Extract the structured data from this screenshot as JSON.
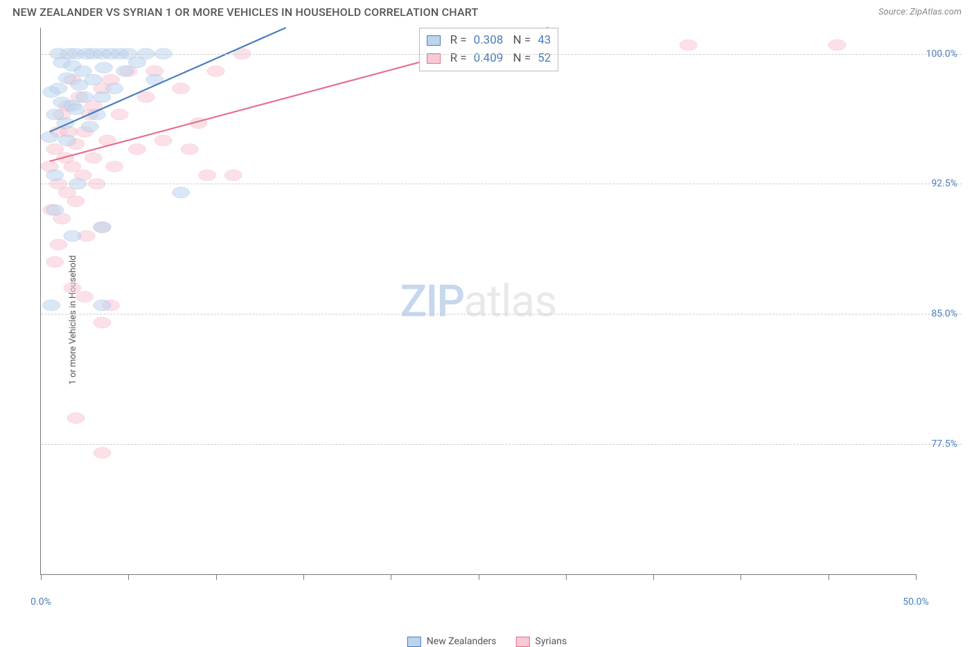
{
  "header": {
    "title": "NEW ZEALANDER VS SYRIAN 1 OR MORE VEHICLES IN HOUSEHOLD CORRELATION CHART",
    "source_prefix": "Source: ",
    "source_name": "ZipAtlas.com"
  },
  "watermark": {
    "part1": "ZIP",
    "part2": "atlas"
  },
  "chart": {
    "type": "scatter",
    "background_color": "#ffffff",
    "grid_color": "#cccccc",
    "axis_color": "#777777",
    "label_color": "#555555",
    "value_color": "#4a7ebb",
    "yaxis_label": "1 or more Vehicles in Household",
    "xlim": [
      0,
      50
    ],
    "ylim": [
      70,
      101.5
    ],
    "xticks": [
      0,
      5,
      10,
      15,
      20,
      25,
      30,
      35,
      40,
      45,
      50
    ],
    "xticks_labeled": {
      "0": "0.0%",
      "50": "50.0%"
    },
    "yticks": [
      77.5,
      85.0,
      92.5,
      100.0
    ],
    "ytick_labels": [
      "77.5%",
      "85.0%",
      "92.5%",
      "100.0%"
    ],
    "marker_radius": 8,
    "marker_opacity": 0.55,
    "marker_stroke_width": 1.2,
    "line_width": 2.2,
    "stats_box": {
      "left_pct": 43.2,
      "top_pct": 0
    },
    "series": {
      "nz": {
        "label": "New Zealanders",
        "fill": "#bcd4ee",
        "stroke": "#4a7ebb",
        "R": "0.308",
        "N": "43",
        "regression": {
          "x1": 0.5,
          "y1": 95.5,
          "x2": 14.0,
          "y2": 101.5
        },
        "points": [
          [
            0.5,
            95.2
          ],
          [
            0.6,
            97.8
          ],
          [
            0.8,
            93.0
          ],
          [
            0.8,
            96.5
          ],
          [
            1.0,
            98.0
          ],
          [
            1.0,
            100.0
          ],
          [
            1.2,
            99.5
          ],
          [
            1.2,
            97.2
          ],
          [
            1.4,
            96.0
          ],
          [
            1.5,
            98.6
          ],
          [
            1.5,
            95.0
          ],
          [
            1.6,
            100.0
          ],
          [
            1.8,
            97.0
          ],
          [
            1.8,
            99.3
          ],
          [
            2.0,
            96.8
          ],
          [
            2.0,
            100.0
          ],
          [
            2.1,
            92.5
          ],
          [
            2.2,
            98.2
          ],
          [
            2.4,
            99.0
          ],
          [
            2.5,
            97.5
          ],
          [
            2.6,
            100.0
          ],
          [
            2.8,
            95.8
          ],
          [
            3.0,
            98.5
          ],
          [
            3.0,
            100.0
          ],
          [
            3.2,
            96.5
          ],
          [
            3.5,
            100.0
          ],
          [
            3.5,
            97.5
          ],
          [
            3.6,
            99.2
          ],
          [
            4.0,
            100.0
          ],
          [
            4.2,
            98.0
          ],
          [
            4.5,
            100.0
          ],
          [
            4.8,
            99.0
          ],
          [
            5.0,
            100.0
          ],
          [
            5.5,
            99.5
          ],
          [
            6.0,
            100.0
          ],
          [
            6.5,
            98.5
          ],
          [
            7.0,
            100.0
          ],
          [
            8.0,
            92.0
          ],
          [
            3.5,
            85.5
          ],
          [
            3.5,
            90.0
          ],
          [
            0.6,
            85.5
          ],
          [
            1.8,
            89.5
          ],
          [
            0.8,
            91.0
          ]
        ]
      },
      "sy": {
        "label": "Syrians",
        "fill": "#f8c9d4",
        "stroke": "#e56f8b",
        "R": "0.409",
        "N": "52",
        "regression": {
          "x1": 0.5,
          "y1": 93.8,
          "x2": 29.0,
          "y2": 101.5
        },
        "points": [
          [
            0.5,
            93.5
          ],
          [
            0.6,
            91.0
          ],
          [
            0.8,
            94.5
          ],
          [
            0.8,
            88.0
          ],
          [
            1.0,
            95.5
          ],
          [
            1.0,
            92.5
          ],
          [
            1.2,
            96.5
          ],
          [
            1.2,
            90.5
          ],
          [
            1.4,
            94.0
          ],
          [
            1.5,
            97.0
          ],
          [
            1.5,
            92.0
          ],
          [
            1.6,
            95.5
          ],
          [
            1.8,
            93.5
          ],
          [
            1.8,
            98.5
          ],
          [
            2.0,
            91.5
          ],
          [
            2.0,
            94.8
          ],
          [
            2.2,
            97.5
          ],
          [
            2.4,
            93.0
          ],
          [
            2.5,
            95.5
          ],
          [
            2.6,
            89.5
          ],
          [
            2.8,
            96.5
          ],
          [
            3.0,
            94.0
          ],
          [
            3.0,
            97.0
          ],
          [
            3.2,
            92.5
          ],
          [
            3.5,
            98.0
          ],
          [
            3.5,
            90.0
          ],
          [
            3.8,
            95.0
          ],
          [
            4.0,
            98.5
          ],
          [
            4.2,
            93.5
          ],
          [
            4.5,
            96.5
          ],
          [
            5.0,
            99.0
          ],
          [
            5.5,
            94.5
          ],
          [
            6.0,
            97.5
          ],
          [
            6.5,
            99.0
          ],
          [
            7.0,
            95.0
          ],
          [
            8.0,
            98.0
          ],
          [
            8.5,
            94.5
          ],
          [
            9.0,
            96.0
          ],
          [
            9.5,
            93.0
          ],
          [
            10.0,
            99.0
          ],
          [
            11.0,
            93.0
          ],
          [
            11.5,
            100.0
          ],
          [
            2.5,
            86.0
          ],
          [
            3.5,
            84.5
          ],
          [
            4.0,
            85.5
          ],
          [
            2.0,
            79.0
          ],
          [
            3.5,
            77.0
          ],
          [
            1.0,
            89.0
          ],
          [
            27.5,
            100.5
          ],
          [
            37.0,
            100.5
          ],
          [
            45.5,
            100.5
          ],
          [
            1.8,
            86.5
          ]
        ]
      }
    }
  }
}
